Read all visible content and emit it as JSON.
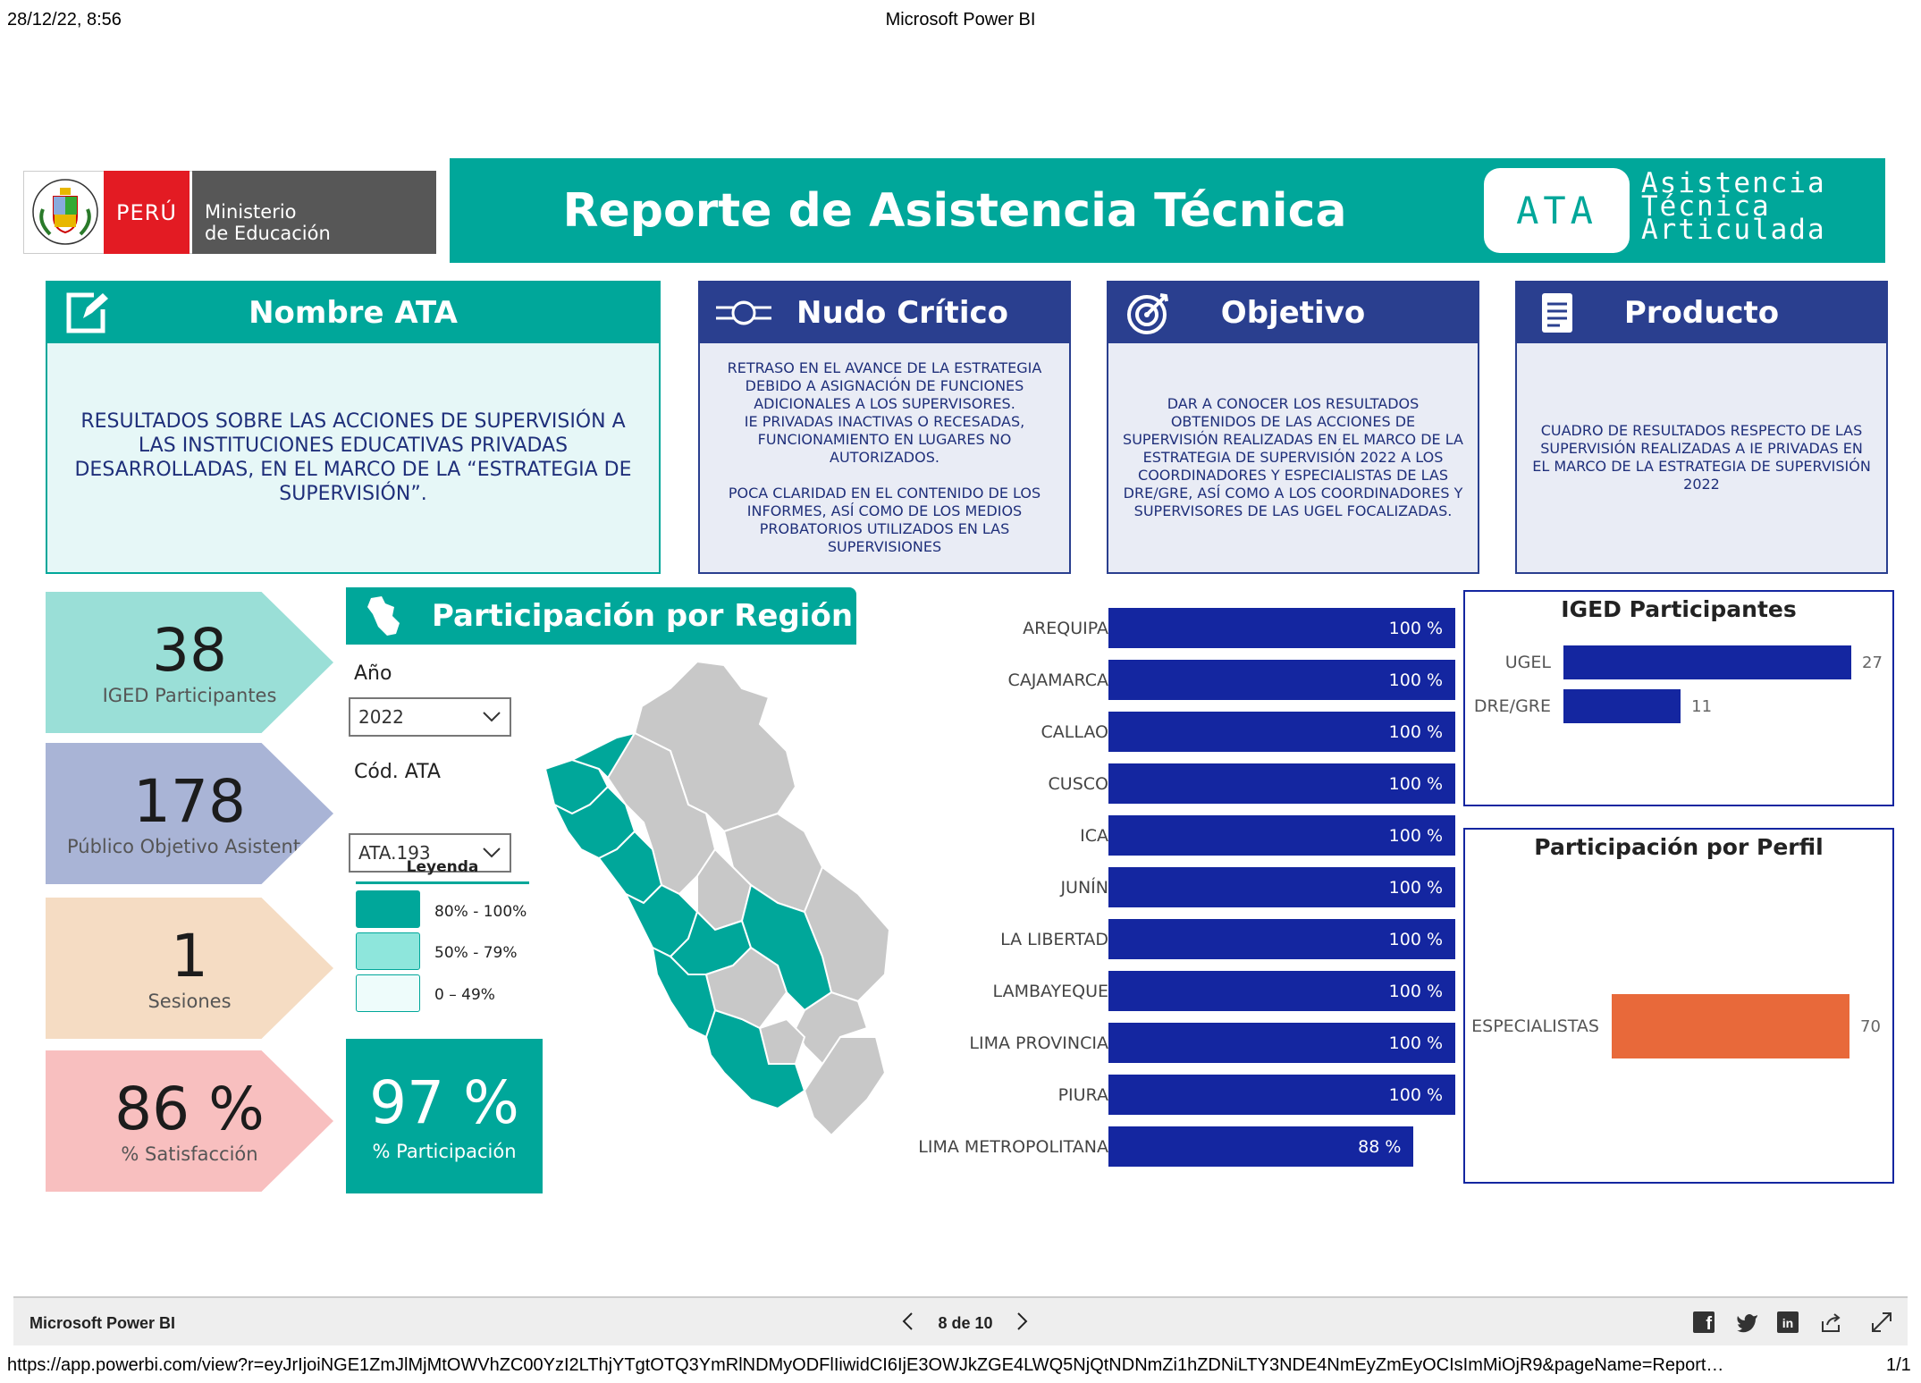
{
  "print_header": {
    "datetime": "28/12/22, 8:56",
    "title": "Microsoft Power BI"
  },
  "logo": {
    "crest_text": "REPÚBLICA DEL PERÚ",
    "country": "PERÚ",
    "ministry_line1": "Ministerio",
    "ministry_line2": "de Educación"
  },
  "banner": {
    "title": "Reporte de Asistencia Técnica",
    "badge": "ATA",
    "words": [
      "Asistencia",
      "Técnica",
      "Articulada"
    ],
    "color": "#00a79a"
  },
  "cards": {
    "nombre": {
      "title": "Nombre ATA",
      "icon": "edit-icon",
      "text": "RESULTADOS SOBRE LAS ACCIONES DE SUPERVISIÓN A LAS INSTITUCIONES EDUCATIVAS PRIVADAS DESARROLLADAS, EN EL MARCO DE LA “ESTRATEGIA DE SUPERVISIÓN”."
    },
    "nudo": {
      "title": "Nudo Crítico",
      "icon": "node-icon",
      "text": "RETRASO EN EL AVANCE DE LA ESTRATEGIA DEBIDO A ASIGNACIÓN DE FUNCIONES ADICIONALES A LOS SUPERVISORES.\nIE PRIVADAS INACTIVAS O RECESADAS, FUNCIONAMIENTO EN LUGARES NO AUTORIZADOS.\n\nPOCA CLARIDAD EN EL CONTENIDO DE LOS INFORMES, ASÍ COMO DE LOS MEDIOS PROBATORIOS UTILIZADOS EN LAS SUPERVISIONES"
    },
    "objetivo": {
      "title": "Objetivo",
      "icon": "target-icon",
      "text": "DAR A CONOCER LOS RESULTADOS OBTENIDOS DE LAS ACCIONES DE SUPERVISIÓN REALIZADAS EN EL MARCO DE LA ESTRATEGIA DE SUPERVISIÓN 2022 A LOS COORDINADORES Y ESPECIALISTAS DE LAS DRE/GRE, ASÍ COMO A LOS COORDINADORES Y SUPERVISORES DE LAS UGEL FOCALIZADAS."
    },
    "producto": {
      "title": "Producto",
      "icon": "document-icon",
      "text": "CUADRO DE RESULTADOS RESPECTO DE LAS SUPERVISIÓN REALIZADAS A IE PRIVADAS EN EL MARCO DE LA ESTRATEGIA DE SUPERVISIÓN 2022"
    }
  },
  "kpis": [
    {
      "value": "38",
      "label": "IGED Participantes",
      "color": "#9adfd7"
    },
    {
      "value": "178",
      "label": "Público Objetivo Asistente",
      "color": "#a9b4d6"
    },
    {
      "value": "1",
      "label": "Sesiones",
      "color": "#f5dcc3"
    },
    {
      "value": "86 %",
      "label": "% Satisfacción",
      "color": "#f8bfbf"
    }
  ],
  "participacion_kpi": {
    "value": "97 %",
    "label": "% Participación"
  },
  "region_section": {
    "title": "Participación por Región",
    "icon": "peru-map-icon"
  },
  "filters": {
    "year": {
      "label": "Año",
      "value": "2022"
    },
    "ata": {
      "label": "Cód. ATA",
      "value": "ATA.193"
    }
  },
  "legend": {
    "title": "Leyenda",
    "items": [
      {
        "label": "80% - 100%",
        "color": "#00a79a"
      },
      {
        "label": "50% - 79%",
        "color": "#8ee6dc"
      },
      {
        "label": "0 – 49%",
        "color": "#eefcfb"
      }
    ]
  },
  "chart_data": [
    {
      "type": "bar",
      "categories": [
        "AREQUIPA",
        "CAJAMARCA",
        "CALLAO",
        "CUSCO",
        "ICA",
        "JUNÍN",
        "LA LIBERTAD",
        "LAMBAYEQUE",
        "LIMA PROVINCIA",
        "PIURA",
        "LIMA METROPOLITANA"
      ],
      "values": [
        100,
        100,
        100,
        100,
        100,
        100,
        100,
        100,
        100,
        100,
        88
      ],
      "labels": [
        "100 %",
        "100 %",
        "100 %",
        "100 %",
        "100 %",
        "100 %",
        "100 %",
        "100 %",
        "100 %",
        "100 %",
        "88 %"
      ],
      "xlim": [
        0,
        100
      ],
      "color": "#1426a0"
    },
    {
      "type": "bar",
      "title": "IGED Participantes",
      "categories": [
        "UGEL",
        "DRE/GRE"
      ],
      "values": [
        27,
        11
      ],
      "xlim": [
        0,
        27
      ],
      "color": "#1426a0"
    },
    {
      "type": "bar",
      "title": "Participación por Perfil",
      "categories": [
        "ESPECIALISTAS"
      ],
      "values": [
        70
      ],
      "xlim": [
        0,
        70
      ],
      "color": "#e8693a"
    }
  ],
  "footer": {
    "app": "Microsoft Power BI",
    "page": "8 de 10",
    "url": "https://app.powerbi.com/view?r=eyJrIjoiNGE1ZmJlMjMtOWVhZC00YzI2LThjYTgtOTQ3YmRlNDMyODFlIiwidCI6IjE3OWJkZGE4LWQ5NjQtNDNmZi1hZDNiLTY3NDE4NmEyZmEyOCIsImMiOjR9&pageName=Report…",
    "page_count": "1/1"
  }
}
